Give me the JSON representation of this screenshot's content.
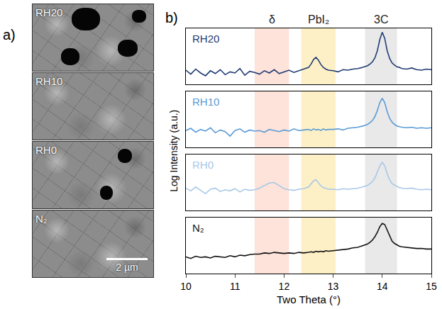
{
  "sem_panel": {
    "letter": "a)",
    "images": [
      "RH20",
      "RH10",
      "RH0",
      "N₂"
    ],
    "scale_bar": "2 µm"
  },
  "chart_data": {
    "type": "line",
    "letter": "b)",
    "x_label": "Two Theta (°)",
    "y_label": "Log Intensity (a.u.)",
    "xlim": [
      10,
      15
    ],
    "xticks": [
      10,
      11,
      12,
      13,
      14,
      15
    ],
    "ylim": [
      0,
      1
    ],
    "tick_labels": "x",
    "grid": false,
    "bands": [
      {
        "label": "δ",
        "x0": 11.4,
        "x1": 12.1,
        "color": "#fde3da"
      },
      {
        "label": "PbI₂",
        "x0": 12.35,
        "x1": 13.05,
        "color": "#fdf0c6"
      },
      {
        "label": "3C",
        "x0": 13.65,
        "x1": 14.3,
        "color": "#e9e9e9"
      }
    ],
    "x": [
      10.0,
      10.1,
      10.2,
      10.3,
      10.4,
      10.5,
      10.6,
      10.7,
      10.8,
      10.9,
      11.0,
      11.1,
      11.2,
      11.3,
      11.4,
      11.5,
      11.6,
      11.7,
      11.8,
      11.9,
      12.0,
      12.1,
      12.2,
      12.3,
      12.4,
      12.5,
      12.55,
      12.6,
      12.65,
      12.7,
      12.75,
      12.8,
      12.85,
      12.9,
      13.0,
      13.1,
      13.2,
      13.3,
      13.4,
      13.5,
      13.6,
      13.7,
      13.75,
      13.8,
      13.85,
      13.9,
      13.95,
      14.0,
      14.05,
      14.1,
      14.15,
      14.2,
      14.25,
      14.3,
      14.35,
      14.4,
      14.5,
      14.6,
      14.7,
      14.8,
      14.9,
      15.0
    ],
    "series": [
      {
        "name": "RH20",
        "color": "#1f3b73",
        "values": [
          0.25,
          0.18,
          0.27,
          0.2,
          0.15,
          0.24,
          0.19,
          0.26,
          0.17,
          0.22,
          0.2,
          0.28,
          0.16,
          0.23,
          0.21,
          0.18,
          0.24,
          0.2,
          0.26,
          0.19,
          0.22,
          0.25,
          0.21,
          0.24,
          0.26,
          0.3,
          0.36,
          0.44,
          0.48,
          0.43,
          0.35,
          0.3,
          0.27,
          0.25,
          0.24,
          0.22,
          0.26,
          0.25,
          0.27,
          0.28,
          0.3,
          0.33,
          0.36,
          0.4,
          0.47,
          0.6,
          0.8,
          0.93,
          0.82,
          0.6,
          0.46,
          0.38,
          0.34,
          0.31,
          0.3,
          0.28,
          0.27,
          0.29,
          0.26,
          0.25,
          0.27,
          0.26
        ]
      },
      {
        "name": "RH10",
        "color": "#5b9bd5",
        "values": [
          0.3,
          0.34,
          0.27,
          0.32,
          0.29,
          0.35,
          0.26,
          0.31,
          0.28,
          0.2,
          0.3,
          0.33,
          0.27,
          0.31,
          0.29,
          0.3,
          0.27,
          0.32,
          0.3,
          0.28,
          0.31,
          0.29,
          0.33,
          0.3,
          0.31,
          0.32,
          0.3,
          0.33,
          0.31,
          0.32,
          0.3,
          0.33,
          0.31,
          0.32,
          0.32,
          0.33,
          0.31,
          0.34,
          0.35,
          0.36,
          0.38,
          0.41,
          0.44,
          0.48,
          0.55,
          0.66,
          0.8,
          0.88,
          0.8,
          0.64,
          0.52,
          0.45,
          0.41,
          0.38,
          0.37,
          0.36,
          0.35,
          0.36,
          0.34,
          0.35,
          0.34,
          0.35
        ]
      },
      {
        "name": "RH0",
        "color": "#a8c8e8",
        "values": [
          0.4,
          0.35,
          0.42,
          0.36,
          0.3,
          0.38,
          0.4,
          0.34,
          0.37,
          0.35,
          0.39,
          0.33,
          0.38,
          0.36,
          0.37,
          0.4,
          0.44,
          0.49,
          0.5,
          0.44,
          0.39,
          0.37,
          0.36,
          0.38,
          0.39,
          0.42,
          0.47,
          0.53,
          0.55,
          0.5,
          0.44,
          0.41,
          0.39,
          0.38,
          0.38,
          0.37,
          0.39,
          0.38,
          0.39,
          0.4,
          0.42,
          0.45,
          0.48,
          0.52,
          0.58,
          0.68,
          0.8,
          0.86,
          0.8,
          0.66,
          0.55,
          0.48,
          0.45,
          0.43,
          0.41,
          0.4,
          0.39,
          0.4,
          0.38,
          0.37,
          0.38,
          0.37
        ]
      },
      {
        "name": "N₂",
        "color": "#111111",
        "values": [
          0.3,
          0.27,
          0.31,
          0.29,
          0.3,
          0.28,
          0.31,
          0.3,
          0.29,
          0.32,
          0.3,
          0.33,
          0.32,
          0.34,
          0.35,
          0.35,
          0.37,
          0.36,
          0.38,
          0.37,
          0.36,
          0.37,
          0.36,
          0.38,
          0.37,
          0.38,
          0.39,
          0.38,
          0.4,
          0.39,
          0.4,
          0.39,
          0.41,
          0.4,
          0.41,
          0.42,
          0.43,
          0.44,
          0.46,
          0.47,
          0.5,
          0.53,
          0.56,
          0.6,
          0.66,
          0.74,
          0.84,
          0.9,
          0.88,
          0.78,
          0.66,
          0.58,
          0.54,
          0.51,
          0.49,
          0.48,
          0.47,
          0.46,
          0.45,
          0.45,
          0.44,
          0.44
        ]
      }
    ]
  }
}
